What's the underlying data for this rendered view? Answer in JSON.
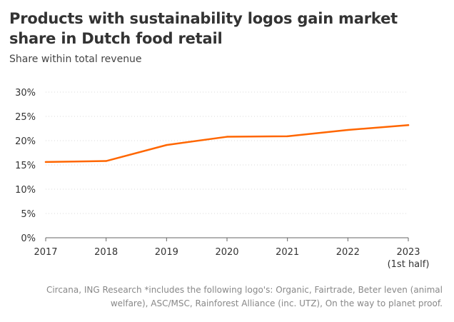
{
  "header": {
    "title": "Products with sustainability logos gain market share in Dutch food retail",
    "subtitle": "Share within total revenue"
  },
  "footer": {
    "source": "Circana, ING Research *includes the following logo's: Organic, Fairtrade, Beter leven (animal welfare), ASC/MSC, Rainforest Alliance (inc. UTZ), On the way to planet proof."
  },
  "colors": {
    "line": "#ff6600",
    "grid": "#d9d9d9",
    "axis": "#666666"
  },
  "chart_data": {
    "type": "line",
    "title": "Products with sustainability logos gain market share in Dutch food retail",
    "subtitle": "Share within total revenue",
    "xlabel": "",
    "ylabel": "",
    "x": [
      "2017",
      "2018",
      "2019",
      "2020",
      "2021",
      "2022",
      "2023 (1st half)"
    ],
    "x_tick_labels": [
      [
        "2017"
      ],
      [
        "2018"
      ],
      [
        "2019"
      ],
      [
        "2020"
      ],
      [
        "2021"
      ],
      [
        "2022"
      ],
      [
        "2023",
        "(1st half)"
      ]
    ],
    "series": [
      {
        "values": [
          15.6,
          15.8,
          19.1,
          20.8,
          20.9,
          22.2,
          23.2
        ]
      }
    ],
    "ylim": [
      0,
      30
    ],
    "yticks": [
      0,
      5,
      10,
      15,
      20,
      25,
      30
    ],
    "ytick_format": "percent",
    "grid": "horizontal-dotted"
  }
}
